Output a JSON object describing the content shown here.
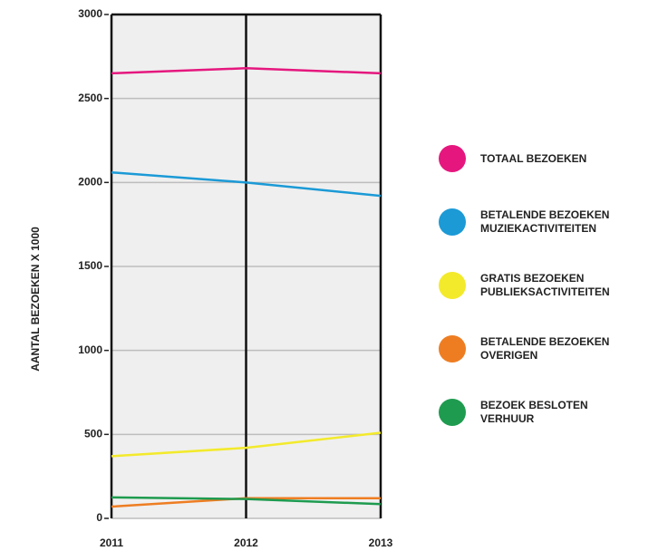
{
  "chart_data": {
    "type": "line",
    "y_label": "AANTAL BEZOEKEN X 1000",
    "x": [
      2011,
      2012,
      2013
    ],
    "xlim": [
      2011,
      2013
    ],
    "xticks": [
      2011,
      2012,
      2013
    ],
    "ylim": [
      0,
      3000
    ],
    "yticks": [
      0,
      500,
      1000,
      1500,
      2000,
      2500,
      3000
    ],
    "grid": true,
    "legend": "right",
    "series": [
      {
        "name": "TOTAAL BEZOEKEN",
        "color": "#e5177e",
        "values": [
          2650,
          2680,
          2650
        ]
      },
      {
        "name": "BETALENDE BEZOEKEN MUZIEKACTIVITEITEN",
        "color": "#1b9ad6",
        "values": [
          2060,
          2000,
          1920
        ]
      },
      {
        "name": "GRATIS BEZOEKEN PUBLIEKSACTIVITEITEN",
        "color": "#f3ea2c",
        "values": [
          370,
          420,
          510
        ]
      },
      {
        "name": "BETALENDE BEZOEKEN OVERIGEN",
        "color": "#ee7d22",
        "values": [
          70,
          120,
          120
        ]
      },
      {
        "name": "BEZOEK BESLOTEN VERHUUR",
        "color": "#1e9b4f",
        "values": [
          125,
          115,
          85
        ]
      }
    ]
  }
}
